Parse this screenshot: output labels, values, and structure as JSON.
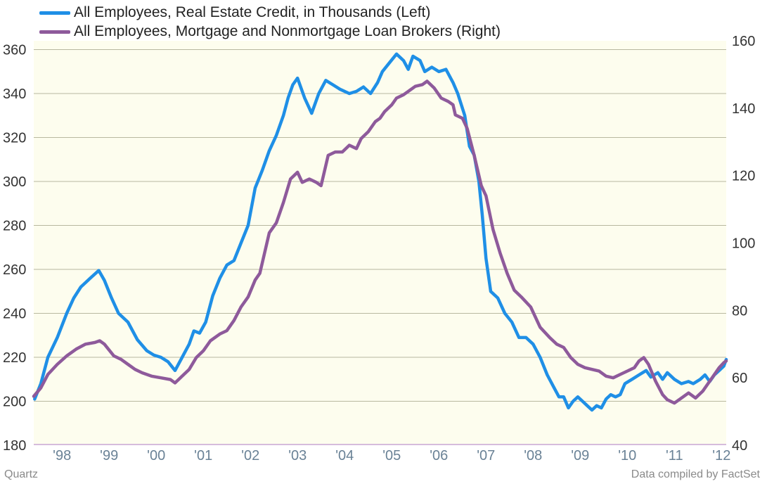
{
  "legend": [
    {
      "label": "All Employees, Real Estate Credit, in Thousands  (Left)",
      "color": "#1f8fe6"
    },
    {
      "label": "All Employees, Mortgage and Nonmortgage Loan Brokers (Right)",
      "color": "#8e5a9b"
    }
  ],
  "footer": {
    "left": "Quartz",
    "right": "Data compiled by FactSet"
  },
  "colors": {
    "plot_bg": "#fdfdee",
    "grid": "#b8b8a0",
    "axis_text": "#333333",
    "x_tick_text": "#6a8296",
    "baseline": "#c9a6d6"
  },
  "chart_data": {
    "type": "line",
    "x_ticks": [
      "'98",
      "'99",
      "'00",
      "'01",
      "'02",
      "'03",
      "'04",
      "'05",
      "'06",
      "'07",
      "'08",
      "'09",
      "'10",
      "'11",
      "'12"
    ],
    "x_range": [
      1997.6,
      2012.3
    ],
    "y_left": {
      "ticks": [
        180,
        200,
        220,
        240,
        260,
        280,
        300,
        320,
        340,
        360
      ],
      "range": [
        180,
        364
      ]
    },
    "y_right": {
      "ticks": [
        40,
        60,
        80,
        100,
        120,
        140,
        160
      ],
      "range": [
        40,
        160
      ]
    },
    "grid": true,
    "legend_position": "top-left",
    "series": [
      {
        "name": "All Employees, Real Estate Credit, in Thousands  (Left)",
        "axis": "left",
        "color": "#1f8fe6",
        "points": [
          [
            1997.62,
            201
          ],
          [
            1997.75,
            208
          ],
          [
            1997.9,
            220
          ],
          [
            1998.1,
            229
          ],
          [
            1998.3,
            240
          ],
          [
            1998.45,
            247
          ],
          [
            1998.6,
            252
          ],
          [
            1998.8,
            256
          ],
          [
            1998.98,
            259.5
          ],
          [
            1999.1,
            255
          ],
          [
            1999.25,
            247
          ],
          [
            1999.4,
            240
          ],
          [
            1999.6,
            236
          ],
          [
            1999.8,
            228
          ],
          [
            2000.0,
            223
          ],
          [
            2000.15,
            221
          ],
          [
            2000.3,
            220
          ],
          [
            2000.45,
            218
          ],
          [
            2000.6,
            214
          ],
          [
            2000.75,
            220
          ],
          [
            2000.9,
            226
          ],
          [
            2001.0,
            232
          ],
          [
            2001.12,
            231
          ],
          [
            2001.25,
            236
          ],
          [
            2001.4,
            248
          ],
          [
            2001.55,
            256
          ],
          [
            2001.7,
            262
          ],
          [
            2001.85,
            264
          ],
          [
            2002.0,
            272
          ],
          [
            2002.15,
            280
          ],
          [
            2002.3,
            297
          ],
          [
            2002.45,
            305
          ],
          [
            2002.6,
            314
          ],
          [
            2002.75,
            321
          ],
          [
            2002.9,
            330
          ],
          [
            2003.0,
            338
          ],
          [
            2003.1,
            344
          ],
          [
            2003.2,
            347
          ],
          [
            2003.35,
            338
          ],
          [
            2003.5,
            331
          ],
          [
            2003.65,
            340
          ],
          [
            2003.8,
            346
          ],
          [
            2003.95,
            344
          ],
          [
            2004.1,
            342
          ],
          [
            2004.3,
            340
          ],
          [
            2004.45,
            341
          ],
          [
            2004.6,
            343
          ],
          [
            2004.75,
            340
          ],
          [
            2004.9,
            345
          ],
          [
            2005.0,
            350
          ],
          [
            2005.15,
            354
          ],
          [
            2005.3,
            358
          ],
          [
            2005.45,
            355
          ],
          [
            2005.55,
            351
          ],
          [
            2005.65,
            357
          ],
          [
            2005.8,
            355
          ],
          [
            2005.9,
            350
          ],
          [
            2006.05,
            352
          ],
          [
            2006.2,
            350
          ],
          [
            2006.35,
            351
          ],
          [
            2006.5,
            345
          ],
          [
            2006.6,
            340
          ],
          [
            2006.75,
            330
          ],
          [
            2006.85,
            316
          ],
          [
            2006.95,
            312
          ],
          [
            2007.05,
            300
          ],
          [
            2007.12,
            285
          ],
          [
            2007.2,
            265
          ],
          [
            2007.3,
            250
          ],
          [
            2007.45,
            247
          ],
          [
            2007.6,
            240
          ],
          [
            2007.75,
            236
          ],
          [
            2007.9,
            229
          ],
          [
            2008.05,
            229
          ],
          [
            2008.2,
            226
          ],
          [
            2008.35,
            220
          ],
          [
            2008.5,
            212
          ],
          [
            2008.65,
            206
          ],
          [
            2008.75,
            202
          ],
          [
            2008.85,
            202
          ],
          [
            2008.95,
            197
          ],
          [
            2009.05,
            200
          ],
          [
            2009.15,
            202
          ],
          [
            2009.25,
            200
          ],
          [
            2009.35,
            198
          ],
          [
            2009.45,
            196
          ],
          [
            2009.55,
            198
          ],
          [
            2009.65,
            197
          ],
          [
            2009.75,
            201
          ],
          [
            2009.85,
            203
          ],
          [
            2009.95,
            202
          ],
          [
            2010.05,
            203
          ],
          [
            2010.15,
            208
          ],
          [
            2010.3,
            210
          ],
          [
            2010.45,
            212
          ],
          [
            2010.6,
            214
          ],
          [
            2010.7,
            211
          ],
          [
            2010.85,
            213
          ],
          [
            2010.95,
            210
          ],
          [
            2011.05,
            213
          ],
          [
            2011.2,
            210
          ],
          [
            2011.35,
            208
          ],
          [
            2011.5,
            209
          ],
          [
            2011.6,
            208
          ],
          [
            2011.75,
            210
          ],
          [
            2011.85,
            212
          ],
          [
            2011.95,
            209
          ],
          [
            2012.05,
            212
          ],
          [
            2012.15,
            214
          ],
          [
            2012.25,
            216
          ],
          [
            2012.3,
            219
          ]
        ]
      },
      {
        "name": "All Employees, Mortgage and Nonmortgage Loan Brokers (Right)",
        "axis": "right",
        "color": "#8e5a9b",
        "points": [
          [
            1997.6,
            54.5
          ],
          [
            1997.75,
            57
          ],
          [
            1997.9,
            61
          ],
          [
            1998.1,
            64
          ],
          [
            1998.3,
            66.5
          ],
          [
            1998.5,
            68.5
          ],
          [
            1998.7,
            70
          ],
          [
            1998.9,
            70.5
          ],
          [
            1999.0,
            71
          ],
          [
            1999.1,
            70
          ],
          [
            1999.3,
            66.5
          ],
          [
            1999.45,
            65.5
          ],
          [
            1999.6,
            64
          ],
          [
            1999.75,
            62.5
          ],
          [
            1999.9,
            61.5
          ],
          [
            2000.1,
            60.5
          ],
          [
            2000.3,
            60
          ],
          [
            2000.5,
            59.5
          ],
          [
            2000.6,
            58.5
          ],
          [
            2000.75,
            60.5
          ],
          [
            2000.9,
            62.5
          ],
          [
            2001.05,
            66
          ],
          [
            2001.2,
            68
          ],
          [
            2001.35,
            71
          ],
          [
            2001.55,
            73
          ],
          [
            2001.7,
            74
          ],
          [
            2001.85,
            77
          ],
          [
            2002.0,
            81
          ],
          [
            2002.15,
            84
          ],
          [
            2002.3,
            89
          ],
          [
            2002.4,
            91
          ],
          [
            2002.5,
            97
          ],
          [
            2002.6,
            103
          ],
          [
            2002.75,
            106
          ],
          [
            2002.9,
            112
          ],
          [
            2003.05,
            119
          ],
          [
            2003.2,
            121
          ],
          [
            2003.3,
            118
          ],
          [
            2003.45,
            119
          ],
          [
            2003.6,
            118
          ],
          [
            2003.7,
            117
          ],
          [
            2003.85,
            126
          ],
          [
            2004.0,
            127
          ],
          [
            2004.15,
            127
          ],
          [
            2004.3,
            129
          ],
          [
            2004.45,
            128
          ],
          [
            2004.55,
            131
          ],
          [
            2004.7,
            133
          ],
          [
            2004.85,
            136
          ],
          [
            2004.95,
            137
          ],
          [
            2005.05,
            139
          ],
          [
            2005.2,
            141
          ],
          [
            2005.3,
            143
          ],
          [
            2005.45,
            144
          ],
          [
            2005.55,
            145
          ],
          [
            2005.7,
            146.5
          ],
          [
            2005.85,
            147
          ],
          [
            2005.95,
            148
          ],
          [
            2006.1,
            146
          ],
          [
            2006.25,
            143
          ],
          [
            2006.4,
            142
          ],
          [
            2006.5,
            141
          ],
          [
            2006.55,
            138
          ],
          [
            2006.7,
            137
          ],
          [
            2006.8,
            134
          ],
          [
            2006.95,
            126
          ],
          [
            2007.1,
            117
          ],
          [
            2007.2,
            114
          ],
          [
            2007.35,
            104
          ],
          [
            2007.5,
            97
          ],
          [
            2007.65,
            91
          ],
          [
            2007.8,
            86
          ],
          [
            2007.95,
            84
          ],
          [
            2008.15,
            81
          ],
          [
            2008.35,
            75
          ],
          [
            2008.55,
            72
          ],
          [
            2008.7,
            70
          ],
          [
            2008.85,
            69
          ],
          [
            2009.0,
            66
          ],
          [
            2009.15,
            64
          ],
          [
            2009.3,
            63
          ],
          [
            2009.45,
            62.5
          ],
          [
            2009.6,
            62
          ],
          [
            2009.75,
            60.5
          ],
          [
            2009.9,
            60
          ],
          [
            2010.05,
            61
          ],
          [
            2010.2,
            62
          ],
          [
            2010.35,
            63
          ],
          [
            2010.45,
            65
          ],
          [
            2010.55,
            66
          ],
          [
            2010.65,
            64
          ],
          [
            2010.8,
            59
          ],
          [
            2010.95,
            55
          ],
          [
            2011.05,
            53.5
          ],
          [
            2011.2,
            52.5
          ],
          [
            2011.35,
            54
          ],
          [
            2011.5,
            55.5
          ],
          [
            2011.65,
            54
          ],
          [
            2011.8,
            56
          ],
          [
            2011.95,
            59
          ],
          [
            2012.05,
            61
          ],
          [
            2012.15,
            63
          ],
          [
            2012.25,
            64.5
          ],
          [
            2012.3,
            65
          ]
        ]
      }
    ]
  }
}
